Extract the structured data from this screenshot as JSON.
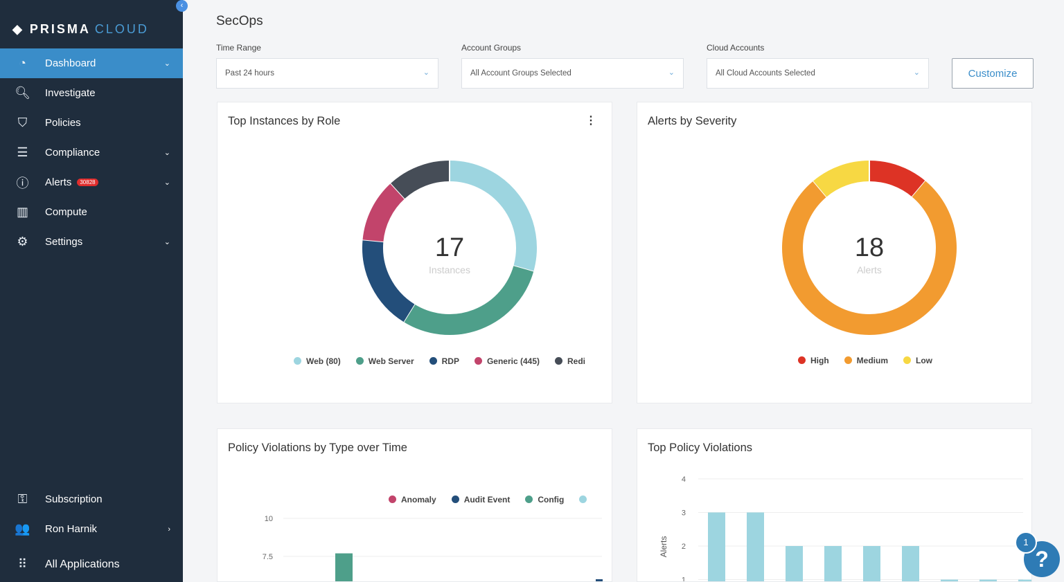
{
  "sidebar": {
    "brand_a": "PRISMA",
    "brand_b": "CLOUD",
    "items": [
      {
        "label": "Dashboard",
        "icon": "gauge-icon",
        "active": true,
        "chevron": true
      },
      {
        "label": "Investigate",
        "icon": "search-icon"
      },
      {
        "label": "Policies",
        "icon": "shield-check-icon"
      },
      {
        "label": "Compliance",
        "icon": "checklist-icon",
        "chevron": true
      },
      {
        "label": "Alerts",
        "icon": "alert-circle-icon",
        "badge": "30828",
        "chevron": true
      },
      {
        "label": "Compute",
        "icon": "container-icon"
      },
      {
        "label": "Settings",
        "icon": "gear-icon",
        "chevron": true
      }
    ],
    "subscription": "Subscription",
    "user": "Ron Harnik",
    "all_apps": "All Applications"
  },
  "page": {
    "title": "SecOps"
  },
  "filters": {
    "time_range": {
      "label": "Time Range",
      "value": "Past 24 hours"
    },
    "account_groups": {
      "label": "Account Groups",
      "value": "All Account Groups Selected"
    },
    "cloud_accounts": {
      "label": "Cloud Accounts",
      "value": "All Cloud Accounts Selected"
    },
    "customize": "Customize"
  },
  "help": {
    "badge": "1",
    "icon": "?"
  },
  "colors": {
    "accent": "#3a8dc9",
    "sidebar": "#1f2d3d"
  },
  "chart_data": [
    {
      "type": "pie",
      "title": "Top Instances by Role",
      "center_value": "17",
      "center_label": "Instances",
      "legend": [
        "Web (80)",
        "Web Server",
        "RDP",
        "Generic (445)",
        "Redi"
      ],
      "values": [
        5,
        5,
        3,
        2,
        2
      ],
      "colors": [
        "#9dd5e0",
        "#4e9f8a",
        "#234e7a",
        "#c2446b",
        "#464d57"
      ]
    },
    {
      "type": "pie",
      "title": "Alerts by Severity",
      "center_value": "18",
      "center_label": "Alerts",
      "legend": [
        "High",
        "Medium",
        "Low"
      ],
      "values": [
        2,
        14,
        2
      ],
      "colors": [
        "#dd3325",
        "#f29b30",
        "#f7d843"
      ],
      "order": [
        0,
        1,
        2
      ]
    },
    {
      "type": "bar",
      "title": "Policy Violations by Type over Time",
      "legend": [
        "Anomaly",
        "Audit Event",
        "Config",
        ""
      ],
      "legend_colors": [
        "#c2446b",
        "#234e7a",
        "#4e9f8a",
        "#9dd5e0"
      ],
      "y_ticks": [
        "10",
        "7.5"
      ],
      "ylim": [
        0,
        10
      ],
      "bars": [
        {
          "series": "Config",
          "value": 7.7
        },
        {
          "series": "Audit Event",
          "value": 0.3
        }
      ]
    },
    {
      "type": "bar",
      "title": "Top Policy Violations",
      "ylabel": "Alerts",
      "y_ticks": [
        "4",
        "3",
        "2",
        "1"
      ],
      "ylim": [
        1,
        4
      ],
      "values": [
        3,
        3,
        2,
        2,
        2,
        2,
        1,
        1,
        1
      ],
      "color": "#9dd5e0"
    }
  ]
}
